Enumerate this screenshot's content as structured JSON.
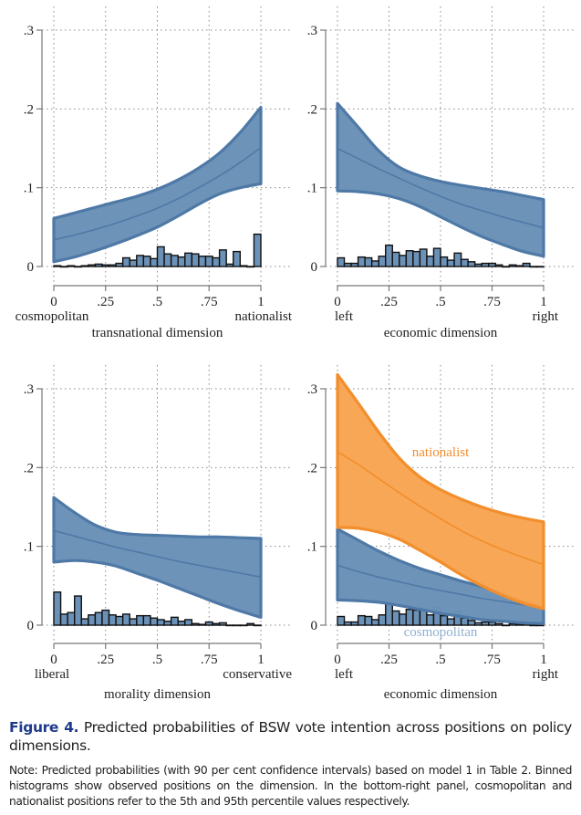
{
  "figure": {
    "label": "Figure 4.",
    "caption": " Predicted probabilities of BSW vote intention across positions on policy dimensions.",
    "note": "Note: Predicted probabilities (with 90 per cent confidence intervals) based on model 1 in Table 2. Binned histograms show observed positions on the dimension. In the bottom-right panel, cosmopolitan and nationalist positions refer to the 5th and 95th percentile values respectively."
  },
  "colors": {
    "blue_fill": "#6b91b7",
    "blue_edge": "#4e79a7",
    "orange_fill": "#f7a553",
    "orange_edge": "#f28e2b",
    "hist_fill": "#6b91b7",
    "cosmopolitan_label": "#8fb0d3",
    "nationalist_label": "#f28e2b",
    "figure_label": "#1f3a8a"
  },
  "chart_data": [
    {
      "type": "area",
      "panel": "top-left",
      "xlabel": "transnational dimension",
      "x_end_labels": [
        "cosmopolitan",
        "nationalist"
      ],
      "xticks": [
        "0",
        ".25",
        ".5",
        ".75",
        "1"
      ],
      "xtick_values": [
        0,
        0.25,
        0.5,
        0.75,
        1
      ],
      "yticks": [
        "0",
        ".1",
        ".2",
        ".3"
      ],
      "ytick_values": [
        0,
        0.1,
        0.2,
        0.3
      ],
      "xlim": [
        0,
        1
      ],
      "ylim": [
        0,
        0.3
      ],
      "grid": true,
      "series": [
        {
          "name": "predicted probability",
          "color": "blue",
          "x": [
            0,
            0.1,
            0.2,
            0.3,
            0.4,
            0.5,
            0.6,
            0.7,
            0.8,
            0.9,
            1.0
          ],
          "mean": [
            0.034,
            0.04,
            0.047,
            0.055,
            0.064,
            0.074,
            0.086,
            0.1,
            0.115,
            0.132,
            0.151
          ],
          "lower": [
            0.006,
            0.012,
            0.02,
            0.029,
            0.039,
            0.05,
            0.064,
            0.079,
            0.092,
            0.1,
            0.105
          ],
          "upper": [
            0.061,
            0.068,
            0.075,
            0.082,
            0.089,
            0.098,
            0.11,
            0.125,
            0.144,
            0.17,
            0.202
          ]
        }
      ],
      "histogram": {
        "bins": 30,
        "heights": [
          0.001,
          0.0,
          0.001,
          0.0,
          0.001,
          0.002,
          0.003,
          0.002,
          0.002,
          0.004,
          0.011,
          0.008,
          0.014,
          0.013,
          0.01,
          0.025,
          0.016,
          0.014,
          0.012,
          0.017,
          0.016,
          0.013,
          0.013,
          0.011,
          0.021,
          0.003,
          0.019,
          0.001,
          0.0,
          0.041
        ]
      }
    },
    {
      "type": "area",
      "panel": "top-right",
      "xlabel": "economic dimension",
      "x_end_labels": [
        "left",
        "right"
      ],
      "xticks": [
        "0",
        ".25",
        ".5",
        ".75",
        "1"
      ],
      "xtick_values": [
        0,
        0.25,
        0.5,
        0.75,
        1
      ],
      "yticks": [
        "0",
        ".1",
        ".2",
        ".3"
      ],
      "ytick_values": [
        0,
        0.1,
        0.2,
        0.3
      ],
      "xlim": [
        0,
        1
      ],
      "ylim": [
        0,
        0.3
      ],
      "grid": true,
      "series": [
        {
          "name": "predicted probability",
          "color": "blue",
          "x": [
            0,
            0.1,
            0.2,
            0.3,
            0.4,
            0.5,
            0.6,
            0.7,
            0.8,
            0.9,
            1.0
          ],
          "mean": [
            0.15,
            0.137,
            0.124,
            0.112,
            0.1,
            0.089,
            0.079,
            0.071,
            0.063,
            0.056,
            0.049
          ],
          "lower": [
            0.096,
            0.095,
            0.092,
            0.086,
            0.076,
            0.063,
            0.05,
            0.038,
            0.028,
            0.019,
            0.013
          ],
          "upper": [
            0.207,
            0.177,
            0.147,
            0.126,
            0.115,
            0.108,
            0.103,
            0.099,
            0.095,
            0.09,
            0.085
          ]
        }
      ],
      "histogram": {
        "bins": 30,
        "heights": [
          0.011,
          0.004,
          0.004,
          0.012,
          0.011,
          0.007,
          0.013,
          0.027,
          0.018,
          0.014,
          0.02,
          0.019,
          0.022,
          0.013,
          0.023,
          0.012,
          0.008,
          0.017,
          0.009,
          0.006,
          0.003,
          0.004,
          0.004,
          0.002,
          0.0,
          0.002,
          0.001,
          0.004,
          0.0,
          0.0
        ]
      }
    },
    {
      "type": "area",
      "panel": "bottom-left",
      "xlabel": "morality dimension",
      "x_end_labels": [
        "liberal",
        "conservative"
      ],
      "xticks": [
        "0",
        ".25",
        ".5",
        ".75",
        "1"
      ],
      "xtick_values": [
        0,
        0.25,
        0.5,
        0.75,
        1
      ],
      "yticks": [
        "0",
        ".1",
        ".2",
        ".3"
      ],
      "ytick_values": [
        0,
        0.1,
        0.2,
        0.3
      ],
      "xlim": [
        0,
        1
      ],
      "ylim": [
        0,
        0.3
      ],
      "grid": true,
      "series": [
        {
          "name": "predicted probability",
          "color": "blue",
          "x": [
            0,
            0.1,
            0.2,
            0.3,
            0.4,
            0.5,
            0.6,
            0.7,
            0.8,
            0.9,
            1.0
          ],
          "mean": [
            0.12,
            0.113,
            0.106,
            0.099,
            0.093,
            0.087,
            0.081,
            0.076,
            0.071,
            0.066,
            0.061
          ],
          "lower": [
            0.08,
            0.082,
            0.08,
            0.075,
            0.066,
            0.057,
            0.047,
            0.037,
            0.027,
            0.018,
            0.01
          ],
          "upper": [
            0.162,
            0.143,
            0.127,
            0.118,
            0.115,
            0.114,
            0.113,
            0.112,
            0.112,
            0.111,
            0.11
          ]
        }
      ],
      "histogram": {
        "bins": 30,
        "heights": [
          0.042,
          0.014,
          0.016,
          0.037,
          0.008,
          0.013,
          0.016,
          0.019,
          0.013,
          0.011,
          0.014,
          0.008,
          0.012,
          0.012,
          0.009,
          0.007,
          0.005,
          0.01,
          0.005,
          0.007,
          0.002,
          0.001,
          0.004,
          0.002,
          0.003,
          0.0,
          0.0,
          0.0,
          0.002,
          0.0
        ]
      }
    },
    {
      "type": "area",
      "panel": "bottom-right",
      "xlabel": "economic dimension",
      "x_end_labels": [
        "left",
        "right"
      ],
      "xticks": [
        "0",
        ".25",
        ".5",
        ".75",
        "1"
      ],
      "xtick_values": [
        0,
        0.25,
        0.5,
        0.75,
        1
      ],
      "yticks": [
        "0",
        ".1",
        ".2",
        ".3"
      ],
      "ytick_values": [
        0,
        0.1,
        0.2,
        0.3
      ],
      "xlim": [
        0,
        1
      ],
      "ylim": [
        0,
        0.3
      ],
      "grid": true,
      "annotations": [
        {
          "text": "nationalist",
          "series": "nationalist",
          "x": 0.5,
          "y": 0.22
        },
        {
          "text": "cosmopolitan",
          "series": "cosmopolitan",
          "x": 0.5,
          "y": -0.008
        }
      ],
      "series": [
        {
          "name": "cosmopolitan",
          "color": "blue",
          "x": [
            0,
            0.1,
            0.2,
            0.3,
            0.4,
            0.5,
            0.6,
            0.7,
            0.8,
            0.9,
            1.0
          ],
          "mean": [
            0.076,
            0.068,
            0.061,
            0.055,
            0.049,
            0.044,
            0.039,
            0.034,
            0.03,
            0.026,
            0.022
          ],
          "lower": [
            0.032,
            0.031,
            0.029,
            0.025,
            0.02,
            0.015,
            0.011,
            0.007,
            0.005,
            0.003,
            0.002
          ],
          "upper": [
            0.122,
            0.108,
            0.094,
            0.082,
            0.072,
            0.064,
            0.056,
            0.049,
            0.04,
            0.031,
            0.023
          ]
        },
        {
          "name": "nationalist",
          "color": "orange",
          "x": [
            0,
            0.1,
            0.2,
            0.3,
            0.4,
            0.5,
            0.6,
            0.7,
            0.8,
            0.9,
            1.0
          ],
          "mean": [
            0.22,
            0.204,
            0.186,
            0.168,
            0.151,
            0.135,
            0.12,
            0.107,
            0.096,
            0.086,
            0.077
          ],
          "lower": [
            0.124,
            0.123,
            0.118,
            0.109,
            0.095,
            0.08,
            0.064,
            0.05,
            0.038,
            0.028,
            0.021
          ],
          "upper": [
            0.318,
            0.282,
            0.245,
            0.212,
            0.188,
            0.172,
            0.16,
            0.15,
            0.142,
            0.136,
            0.131
          ]
        }
      ],
      "histogram": {
        "bins": 30,
        "heights": [
          0.011,
          0.004,
          0.004,
          0.012,
          0.011,
          0.007,
          0.013,
          0.027,
          0.018,
          0.014,
          0.02,
          0.019,
          0.022,
          0.013,
          0.023,
          0.012,
          0.008,
          0.017,
          0.009,
          0.006,
          0.003,
          0.004,
          0.004,
          0.002,
          0.0,
          0.002,
          0.001,
          0.004,
          0.0,
          0.0
        ]
      }
    }
  ]
}
